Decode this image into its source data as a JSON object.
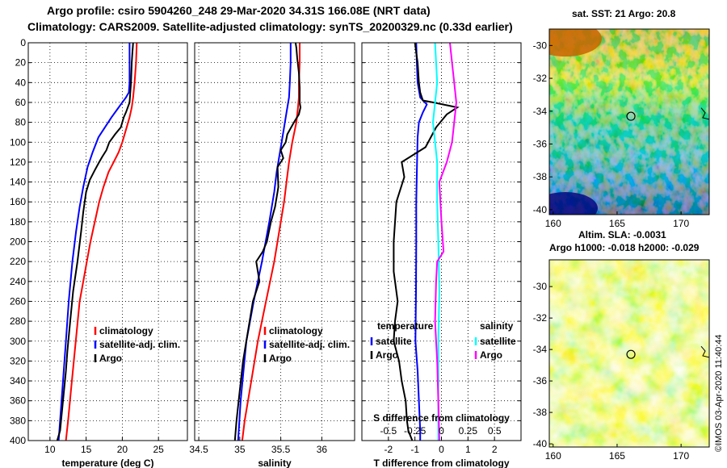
{
  "header": {
    "title1": "Argo profile: csiro 5904260_248 29-Mar-2020 34.31S 166.08E (NRT data)",
    "title2": "Climatology: CARS2009. Satellite-adjusted climatology: synTS_20200329.nc (0.33d earlier)"
  },
  "maps": {
    "sst_title": "sat. SST: 21 Argo: 20.8",
    "sla_title1": "Altim. SLA: -0.0031",
    "sla_title2": "Argo h1000: -0.018 h2000: -0.029",
    "lon_ticks": [
      "160",
      "165",
      "170"
    ],
    "lat_ticks": [
      "-30",
      "-32",
      "-34",
      "-36",
      "-38",
      "-40"
    ],
    "argo_location": {
      "lon": 166.08,
      "lat": -34.31
    }
  },
  "footer": {
    "credit": "©IMOS 03-Apr-2020 11:40:44"
  },
  "chart_data": [
    {
      "type": "line",
      "title": "",
      "xlabel": "temperature (deg C)",
      "ylabel": "",
      "xlim": [
        7,
        29
      ],
      "ylim": [
        400,
        0
      ],
      "xticks": [
        10,
        15,
        20,
        25
      ],
      "yticks": [
        0,
        20,
        40,
        60,
        80,
        100,
        120,
        140,
        160,
        180,
        200,
        220,
        240,
        260,
        280,
        300,
        320,
        340,
        360,
        380,
        400
      ],
      "legend": [
        "climatology",
        "satellite-adj. clim.",
        "Argo"
      ],
      "series": [
        {
          "name": "climatology",
          "color": "#ff0000",
          "x": [
            22,
            21.9,
            21.7,
            21.5,
            21.3,
            21,
            20.6,
            20,
            19.5,
            18.8,
            18.1,
            17.4,
            16.8,
            16.2,
            15.6,
            15.1,
            14.6,
            14.1,
            13.7,
            13.3,
            12.9,
            12.5,
            12.2
          ],
          "y": [
            0,
            20,
            40,
            55,
            65,
            75,
            85,
            100,
            110,
            120,
            130,
            145,
            160,
            180,
            200,
            220,
            240,
            260,
            290,
            320,
            350,
            380,
            400
          ]
        },
        {
          "name": "satellite-adj. clim.",
          "color": "#0000ff",
          "x": [
            21,
            21,
            21,
            20.9,
            20.5,
            19.5,
            18.5,
            17.6,
            16.7,
            15.9,
            15.2,
            14.6,
            14.1,
            13.6,
            13.1,
            12.6,
            12.2,
            11.8,
            11.5,
            11.2
          ],
          "y": [
            0,
            20,
            40,
            50,
            55,
            65,
            75,
            85,
            95,
            110,
            125,
            145,
            165,
            190,
            220,
            260,
            300,
            340,
            370,
            400
          ]
        },
        {
          "name": "Argo",
          "color": "#000000",
          "x": [
            21.5,
            21.4,
            21.3,
            21.2,
            21,
            20.5,
            20.2,
            19.8,
            19,
            18.2,
            17.8,
            17.2,
            16.8,
            16.2,
            15.5,
            15,
            14.6,
            14.3,
            13.8,
            13.2,
            12.8,
            12.4,
            12.2,
            11.8,
            11.6,
            11.4,
            11
          ],
          "y": [
            0,
            10,
            20,
            40,
            60,
            70,
            75,
            85,
            92,
            100,
            108,
            115,
            120,
            128,
            138,
            150,
            170,
            190,
            220,
            250,
            280,
            310,
            330,
            360,
            375,
            390,
            400
          ]
        }
      ]
    },
    {
      "type": "line",
      "title": "",
      "xlabel": "salinity",
      "ylabel": "",
      "xlim": [
        34.45,
        36.4
      ],
      "ylim": [
        400,
        0
      ],
      "xticks": [
        34.5,
        35,
        35.5,
        36
      ],
      "yticks": [
        0,
        20,
        40,
        60,
        80,
        100,
        120,
        140,
        160,
        180,
        200,
        220,
        240,
        260,
        280,
        300,
        320,
        340,
        360,
        380,
        400
      ],
      "legend": [
        "climatology",
        "satellite-adj. clim.",
        "Argo"
      ],
      "series": [
        {
          "name": "climatology",
          "color": "#ff0000",
          "x": [
            35.73,
            35.73,
            35.72,
            35.72,
            35.71,
            35.69,
            35.64,
            35.6,
            35.57,
            35.54,
            35.5,
            35.42,
            35.32,
            35.22,
            35.14,
            35.06,
            35.03
          ],
          "y": [
            0,
            20,
            40,
            55,
            65,
            80,
            100,
            120,
            140,
            160,
            180,
            220,
            260,
            300,
            340,
            380,
            400
          ]
        },
        {
          "name": "satellite-adj. clim.",
          "color": "#0000ff",
          "x": [
            35.62,
            35.62,
            35.61,
            35.6,
            35.57,
            35.53,
            35.49,
            35.45,
            35.42,
            35.36,
            35.27,
            35.17,
            35.08,
            35.01,
            34.98
          ],
          "y": [
            0,
            20,
            40,
            55,
            70,
            90,
            110,
            130,
            150,
            180,
            220,
            260,
            300,
            360,
            400
          ]
        },
        {
          "name": "Argo",
          "color": "#000000",
          "x": [
            35.68,
            35.69,
            35.7,
            35.72,
            35.73,
            35.73,
            35.74,
            35.72,
            35.66,
            35.58,
            35.56,
            35.5,
            35.53,
            35.46,
            35.47,
            35.43,
            35.38,
            35.33,
            35.28,
            35.2,
            35.24,
            35.16,
            35.1,
            35.04,
            35.0,
            34.96,
            34.94
          ],
          "y": [
            0,
            5,
            15,
            30,
            45,
            60,
            65,
            72,
            80,
            92,
            100,
            108,
            116,
            125,
            145,
            165,
            180,
            200,
            210,
            220,
            240,
            260,
            290,
            320,
            350,
            380,
            400
          ]
        }
      ]
    },
    {
      "type": "line",
      "title": "",
      "xlabel": "T difference from climatology",
      "ylabel": "",
      "xlim": [
        -3,
        3
      ],
      "ylim": [
        400,
        0
      ],
      "xticks": [
        -2,
        -1,
        0,
        1,
        2
      ],
      "secondary_xlabel": "S difference from climatology",
      "secondary_xlim": [
        -0.75,
        0.75
      ],
      "secondary_xticks": [
        -0.5,
        -0.25,
        0,
        0.25,
        0.5
      ],
      "yticks": [
        0,
        20,
        40,
        60,
        80,
        100,
        120,
        140,
        160,
        180,
        200,
        220,
        240,
        260,
        280,
        300,
        320,
        340,
        360,
        380,
        400
      ],
      "legend": {
        "temperature": [
          "satellite",
          "Argo"
        ],
        "salinity": [
          "satellite",
          "Argo"
        ]
      },
      "series": [
        {
          "name": "temperature satellite",
          "color": "#0000ff",
          "axis": "T",
          "x": [
            -0.95,
            -0.93,
            -0.9,
            -0.8,
            -0.55,
            -0.7,
            -0.85,
            -0.9,
            -0.92,
            -0.95,
            -0.95,
            -0.96,
            -0.98,
            -0.9,
            -0.85,
            -0.8,
            -0.8
          ],
          "y": [
            0,
            20,
            40,
            55,
            62,
            70,
            80,
            95,
            120,
            160,
            200,
            250,
            300,
            330,
            360,
            390,
            400
          ]
        },
        {
          "name": "temperature Argo",
          "color": "#000000",
          "axis": "T",
          "x": [
            -1,
            -0.95,
            -0.9,
            -0.85,
            -0.8,
            -0.7,
            -0.3,
            0.6,
            0.2,
            -0.2,
            -0.6,
            -1.5,
            -1.4,
            -1.7,
            -1.8,
            -1.8,
            -1.65,
            -1.75,
            -1.8,
            -1.6,
            -1.5,
            -1.35,
            -1.3,
            -1.25,
            -1.1
          ],
          "y": [
            0,
            10,
            20,
            40,
            50,
            58,
            60,
            65,
            72,
            85,
            105,
            120,
            135,
            160,
            200,
            230,
            260,
            280,
            300,
            320,
            340,
            360,
            380,
            390,
            400
          ]
        },
        {
          "name": "salinity satellite",
          "color": "#00ffff",
          "axis": "S",
          "x": [
            -0.06,
            -0.05,
            -0.04,
            -0.06,
            -0.08,
            -0.06,
            -0.04,
            -0.04,
            -0.03,
            -0.02,
            -0.03,
            -0.03,
            -0.03,
            -0.03
          ],
          "y": [
            0,
            20,
            40,
            60,
            80,
            100,
            120,
            160,
            200,
            250,
            300,
            350,
            380,
            400
          ]
        },
        {
          "name": "salinity Argo",
          "color": "#ff00ff",
          "axis": "S",
          "x": [
            0.08,
            0.1,
            0.12,
            0.14,
            0.12,
            0.1,
            0.05,
            -0.02,
            0,
            0.02,
            -0.04,
            -0.05,
            -0.06,
            -0.04,
            -0.03,
            -0.02
          ],
          "y": [
            0,
            20,
            40,
            60,
            80,
            100,
            120,
            140,
            180,
            210,
            220,
            240,
            280,
            320,
            360,
            400
          ]
        }
      ]
    }
  ]
}
